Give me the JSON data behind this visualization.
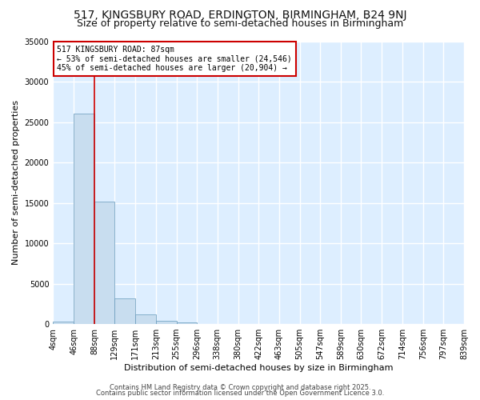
{
  "title": "517, KINGSBURY ROAD, ERDINGTON, BIRMINGHAM, B24 9NJ",
  "subtitle": "Size of property relative to semi-detached houses in Birmingham",
  "xlabel": "Distribution of semi-detached houses by size in Birmingham",
  "ylabel": "Number of semi-detached properties",
  "bin_edges": [
    4,
    46,
    88,
    129,
    171,
    213,
    255,
    296,
    338,
    380,
    422,
    463,
    505,
    547,
    589,
    630,
    672,
    714,
    756,
    797,
    839
  ],
  "bin_labels": [
    "4sqm",
    "46sqm",
    "88sqm",
    "129sqm",
    "171sqm",
    "213sqm",
    "255sqm",
    "296sqm",
    "338sqm",
    "380sqm",
    "422sqm",
    "463sqm",
    "505sqm",
    "547sqm",
    "589sqm",
    "630sqm",
    "672sqm",
    "714sqm",
    "756sqm",
    "797sqm",
    "839sqm"
  ],
  "counts": [
    300,
    26000,
    15200,
    3200,
    1200,
    400,
    200,
    0,
    0,
    0,
    0,
    0,
    0,
    0,
    0,
    0,
    0,
    0,
    0,
    0
  ],
  "bar_color": "#c8ddef",
  "bar_edge_color": "#6699bb",
  "red_line_x": 88,
  "annotation_text_line1": "517 KINGSBURY ROAD: 87sqm",
  "annotation_text_line2": "← 53% of semi-detached houses are smaller (24,546)",
  "annotation_text_line3": "45% of semi-detached houses are larger (20,904) →",
  "annotation_box_facecolor": "#ffffff",
  "annotation_border_color": "#cc0000",
  "ylim": [
    0,
    35000
  ],
  "yticks": [
    0,
    5000,
    10000,
    15000,
    20000,
    25000,
    30000,
    35000
  ],
  "ytick_labels": [
    "0",
    "5000",
    "10000",
    "15000",
    "20000",
    "25000",
    "30000",
    "35000"
  ],
  "footer_line1": "Contains HM Land Registry data © Crown copyright and database right 2025.",
  "footer_line2": "Contains public sector information licensed under the Open Government Licence 3.0.",
  "fig_background_color": "#ffffff",
  "plot_background_color": "#ddeeff",
  "grid_color": "#ffffff",
  "title_fontsize": 10,
  "subtitle_fontsize": 9,
  "label_fontsize": 8,
  "tick_fontsize": 7,
  "annotation_fontsize": 7,
  "footer_fontsize": 6
}
